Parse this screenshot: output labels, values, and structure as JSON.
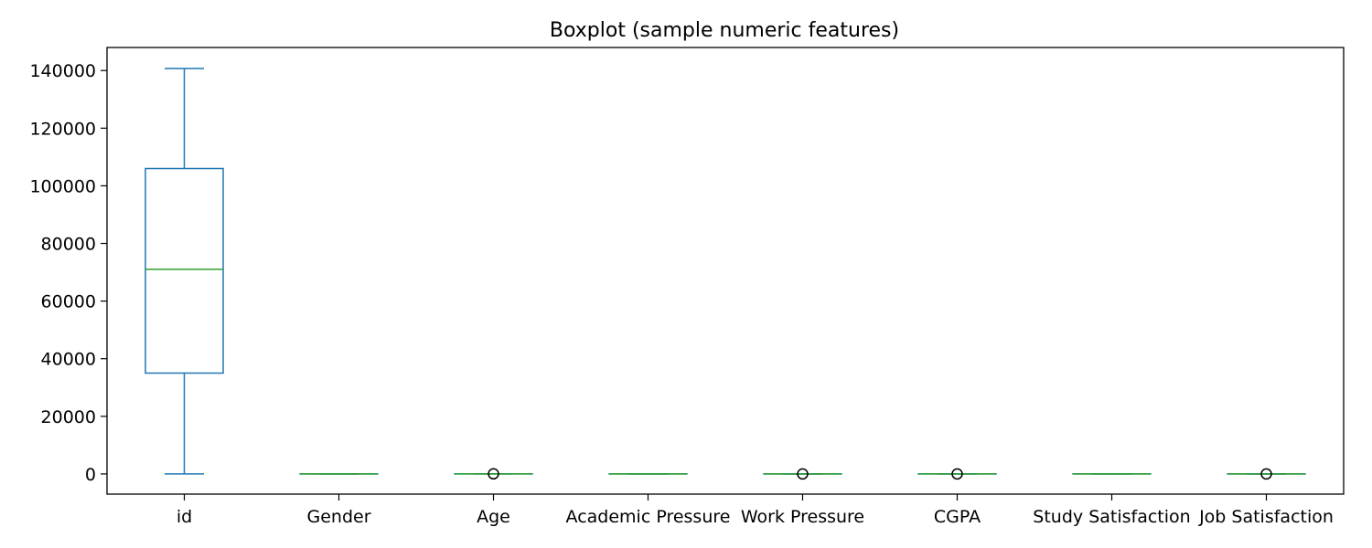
{
  "chart_data": {
    "type": "box",
    "title": "Boxplot (sample numeric features)",
    "xlabel": "",
    "ylabel": "",
    "ylim": [
      -7000,
      148000
    ],
    "yticks": [
      0,
      20000,
      40000,
      60000,
      80000,
      100000,
      120000,
      140000
    ],
    "ytick_labels": [
      "0",
      "20000",
      "40000",
      "60000",
      "80000",
      "100000",
      "120000",
      "140000"
    ],
    "grid": false,
    "legend": "none",
    "colors": {
      "box": "#1f77b4",
      "median": "#2ca02c",
      "outlier": "#000000"
    },
    "categories": [
      "id",
      "Gender",
      "Age",
      "Academic Pressure",
      "Work Pressure",
      "CGPA",
      "Study Satisfaction",
      "Job Satisfaction"
    ],
    "boxes": [
      {
        "label": "id",
        "min": 0,
        "q1": 35000,
        "median": 71000,
        "q3": 106000,
        "max": 140700,
        "outliers": []
      },
      {
        "label": "Gender",
        "min": 0,
        "q1": 0,
        "median": 1,
        "q3": 1,
        "max": 1,
        "outliers": []
      },
      {
        "label": "Age",
        "min": 18,
        "q1": 21,
        "median": 25,
        "q3": 30,
        "max": 39,
        "outliers": [
          40
        ]
      },
      {
        "label": "Academic Pressure",
        "min": 0,
        "q1": 2,
        "median": 3,
        "q3": 4,
        "max": 5,
        "outliers": []
      },
      {
        "label": "Work Pressure",
        "min": 0,
        "q1": 0,
        "median": 0,
        "q3": 0,
        "max": 0,
        "outliers": [
          5
        ]
      },
      {
        "label": "CGPA",
        "min": 5,
        "q1": 6.3,
        "median": 7.8,
        "q3": 8.9,
        "max": 10,
        "outliers": [
          0
        ]
      },
      {
        "label": "Study Satisfaction",
        "min": 0,
        "q1": 2,
        "median": 3,
        "q3": 4,
        "max": 5,
        "outliers": []
      },
      {
        "label": "Job Satisfaction",
        "min": 0,
        "q1": 0,
        "median": 0,
        "q3": 0,
        "max": 0,
        "outliers": [
          2
        ]
      }
    ]
  }
}
